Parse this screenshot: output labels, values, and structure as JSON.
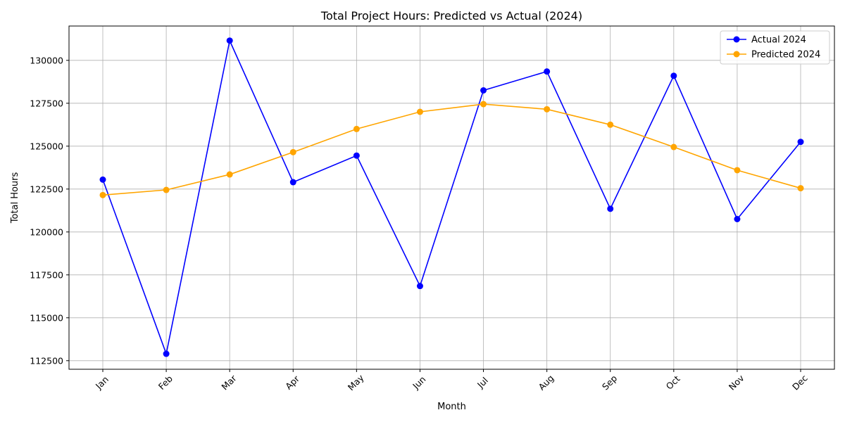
{
  "chart_data": {
    "type": "line",
    "title": "Total Project Hours: Predicted vs Actual (2024)",
    "xlabel": "Month",
    "ylabel": "Total Hours",
    "categories": [
      "Jan",
      "Feb",
      "Mar",
      "Apr",
      "May",
      "Jun",
      "Jul",
      "Aug",
      "Sep",
      "Oct",
      "Nov",
      "Dec"
    ],
    "ylim": [
      112000,
      132000
    ],
    "yticks": [
      112500,
      115000,
      117500,
      120000,
      122500,
      125000,
      127500,
      130000
    ],
    "grid": true,
    "legend_position": "top-right",
    "series": [
      {
        "name": "Actual 2024",
        "color": "#0000ff",
        "values": [
          123050,
          112900,
          131150,
          122900,
          124450,
          116850,
          128250,
          129350,
          121350,
          129100,
          120750,
          125250
        ]
      },
      {
        "name": "Predicted 2024",
        "color": "#ffa500",
        "values": [
          122150,
          122450,
          123350,
          124650,
          126000,
          127000,
          127450,
          127150,
          126250,
          124950,
          123600,
          122550
        ]
      }
    ]
  }
}
